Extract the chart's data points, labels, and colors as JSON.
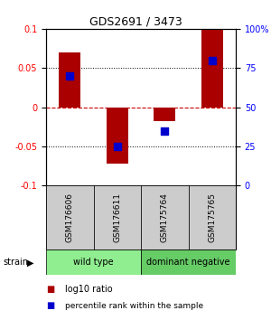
{
  "title": "GDS2691 / 3473",
  "samples": [
    "GSM176606",
    "GSM176611",
    "GSM175764",
    "GSM175765"
  ],
  "log10_ratio": [
    0.07,
    -0.072,
    -0.018,
    0.1
  ],
  "percentile_rank": [
    70,
    25,
    35,
    80
  ],
  "groups": [
    {
      "label": "wild type",
      "samples": [
        0,
        1
      ],
      "color": "#90EE90"
    },
    {
      "label": "dominant negative",
      "samples": [
        2,
        3
      ],
      "color": "#66CC66"
    }
  ],
  "group_label": "strain",
  "ylim": [
    -0.1,
    0.1
  ],
  "y2lim": [
    0,
    100
  ],
  "bar_color": "#AA0000",
  "dot_color": "#0000CC",
  "hline_color": "#CC0000",
  "bg_color": "#FFFFFF",
  "sample_box_color": "#CCCCCC",
  "yticks_left": [
    -0.1,
    -0.05,
    0,
    0.05,
    0.1
  ],
  "yticks_left_labels": [
    "-0.1",
    "-0.05",
    "0",
    "0.05",
    "0.1"
  ],
  "yticks_right": [
    0,
    25,
    50,
    75,
    100
  ],
  "yticks_right_labels": [
    "0",
    "25",
    "50",
    "75",
    "100%"
  ],
  "bar_width": 0.45,
  "dot_size": 40
}
